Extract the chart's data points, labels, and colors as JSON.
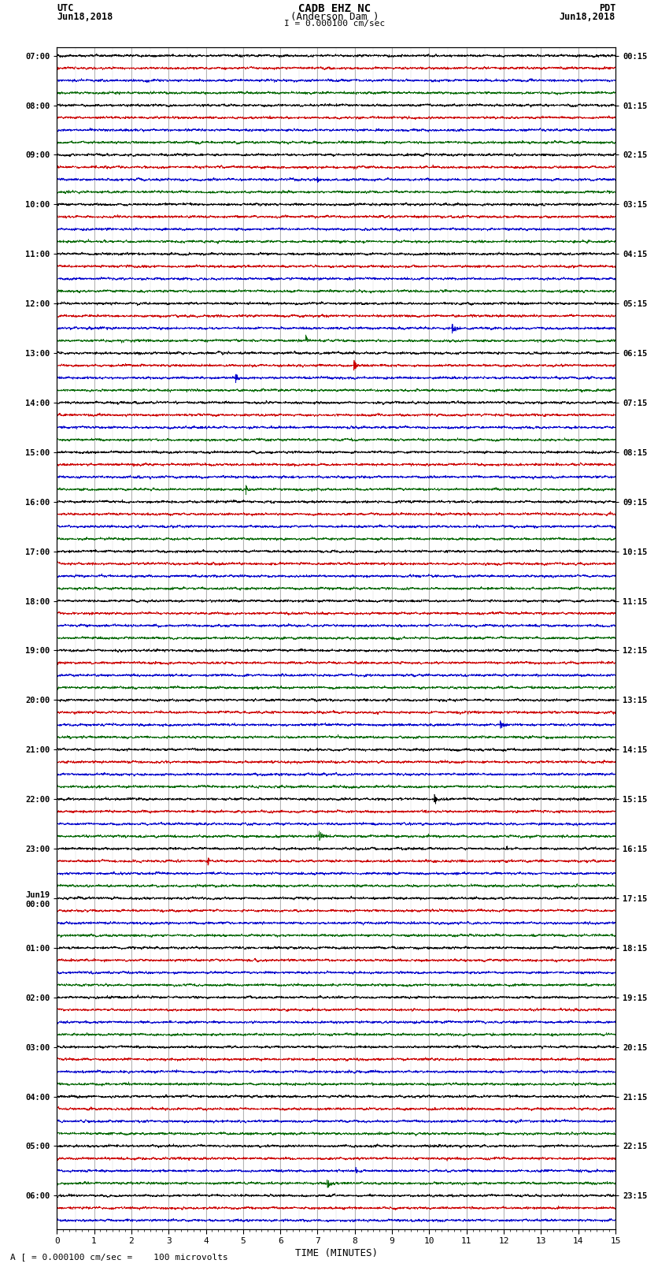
{
  "title_line1": "CADB EHZ NC",
  "title_line2": "(Anderson Dam )",
  "scale_text": "I = 0.000100 cm/sec",
  "left_header": "UTC",
  "left_date": "Jun18,2018",
  "right_header": "PDT",
  "right_date": "Jun18,2018",
  "xlabel": "TIME (MINUTES)",
  "footer": "A [ = 0.000100 cm/sec =    100 microvolts",
  "xmin": 0,
  "xmax": 15,
  "background_color": "#ffffff",
  "trace_colors": [
    "#000000",
    "#cc0000",
    "#0000cc",
    "#006600"
  ],
  "utc_labels": [
    "07:00",
    "",
    "",
    "",
    "08:00",
    "",
    "",
    "",
    "09:00",
    "",
    "",
    "",
    "10:00",
    "",
    "",
    "",
    "11:00",
    "",
    "",
    "",
    "12:00",
    "",
    "",
    "",
    "13:00",
    "",
    "",
    "",
    "14:00",
    "",
    "",
    "",
    "15:00",
    "",
    "",
    "",
    "16:00",
    "",
    "",
    "",
    "17:00",
    "",
    "",
    "",
    "18:00",
    "",
    "",
    "",
    "19:00",
    "",
    "",
    "",
    "20:00",
    "",
    "",
    "",
    "21:00",
    "",
    "",
    "",
    "22:00",
    "",
    "",
    "",
    "23:00",
    "",
    "",
    "",
    "Jun19\n00:00",
    "",
    "",
    "",
    "01:00",
    "",
    "",
    "",
    "02:00",
    "",
    "",
    "",
    "03:00",
    "",
    "",
    "",
    "04:00",
    "",
    "",
    "",
    "05:00",
    "",
    "",
    "",
    "06:00",
    "",
    ""
  ],
  "pdt_labels": [
    "00:15",
    "",
    "",
    "",
    "01:15",
    "",
    "",
    "",
    "02:15",
    "",
    "",
    "",
    "03:15",
    "",
    "",
    "",
    "04:15",
    "",
    "",
    "",
    "05:15",
    "",
    "",
    "",
    "06:15",
    "",
    "",
    "",
    "07:15",
    "",
    "",
    "",
    "08:15",
    "",
    "",
    "",
    "09:15",
    "",
    "",
    "",
    "10:15",
    "",
    "",
    "",
    "11:15",
    "",
    "",
    "",
    "12:15",
    "",
    "",
    "",
    "13:15",
    "",
    "",
    "",
    "14:15",
    "",
    "",
    "",
    "15:15",
    "",
    "",
    "",
    "16:15",
    "",
    "",
    "",
    "17:15",
    "",
    "",
    "",
    "18:15",
    "",
    "",
    "",
    "19:15",
    "",
    "",
    "",
    "20:15",
    "",
    "",
    "",
    "21:15",
    "",
    "",
    "",
    "22:15",
    "",
    "",
    "",
    "23:15",
    "",
    ""
  ],
  "n_traces": 95,
  "noise_std": 0.25,
  "ar_coeff": 0.85,
  "trace_amplitude_scale": 0.38,
  "grid_color": "#999999",
  "grid_linewidth": 0.5,
  "trace_linewidth": 0.5,
  "n_pts": 3000,
  "spike_prob": 0.12,
  "spike_amp_min": 0.5,
  "spike_amp_max": 1.5
}
